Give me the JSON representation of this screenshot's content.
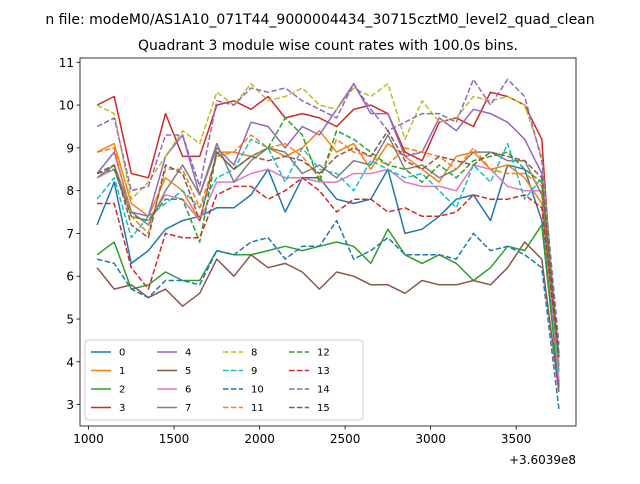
{
  "suptitle": "n file: modeM0/AS1A10_071T44_9000004434_30715cztM0_level2_quad_clean",
  "chart_data": {
    "type": "line",
    "title": "Quadrant 3 module wise count rates with 100.0s bins.",
    "xlabel": "",
    "ylabel": "",
    "x_offset_label": "+3.6039e8",
    "xlim": [
      950,
      3850
    ],
    "ylim": [
      2.5,
      11.1
    ],
    "xticks": [
      1000,
      1500,
      2000,
      2500,
      3000,
      3500
    ],
    "xtick_labels": [
      "1000",
      "1500",
      "2000",
      "2500",
      "3000",
      "3500"
    ],
    "yticks": [
      3,
      4,
      5,
      6,
      7,
      8,
      9,
      10,
      11
    ],
    "ytick_labels": [
      "3",
      "4",
      "5",
      "6",
      "7",
      "8",
      "9",
      "10",
      "11"
    ],
    "grid": false,
    "legend_position": "lower-left",
    "x": [
      1050,
      1150,
      1250,
      1350,
      1450,
      1550,
      1650,
      1750,
      1850,
      1950,
      2050,
      2150,
      2250,
      2350,
      2450,
      2550,
      2650,
      2750,
      2850,
      2950,
      3050,
      3150,
      3250,
      3350,
      3450,
      3550,
      3650,
      3750
    ],
    "series": [
      {
        "name": "0",
        "color": "#1f77b4",
        "dash": "solid",
        "values": [
          7.2,
          8.2,
          6.3,
          6.6,
          7.1,
          7.3,
          7.4,
          7.6,
          7.6,
          7.9,
          8.5,
          7.5,
          8.3,
          8.3,
          7.8,
          7.7,
          7.8,
          8.5,
          7.0,
          7.1,
          7.4,
          7.8,
          7.9,
          7.3,
          8.6,
          8.5,
          7.3,
          3.5
        ]
      },
      {
        "name": "1",
        "color": "#ff7f0e",
        "dash": "solid",
        "values": [
          8.9,
          9.1,
          7.7,
          7.4,
          8.3,
          8.0,
          7.3,
          8.9,
          8.9,
          8.8,
          9.0,
          8.8,
          9.0,
          9.4,
          8.9,
          9.1,
          8.5,
          9.1,
          8.8,
          8.5,
          8.2,
          8.8,
          8.9,
          8.5,
          8.6,
          8.3,
          7.7,
          3.8
        ]
      },
      {
        "name": "2",
        "color": "#2ca02c",
        "dash": "solid",
        "values": [
          6.5,
          6.8,
          5.7,
          5.8,
          6.1,
          5.9,
          5.9,
          6.6,
          6.5,
          6.5,
          6.6,
          6.7,
          6.6,
          6.7,
          6.8,
          6.7,
          6.3,
          7.1,
          6.5,
          6.3,
          6.5,
          6.3,
          5.9,
          6.2,
          6.7,
          6.6,
          7.2,
          3.4
        ]
      },
      {
        "name": "3",
        "color": "#d62728",
        "dash": "solid",
        "values": [
          10.0,
          10.2,
          8.4,
          8.3,
          9.8,
          8.8,
          8.8,
          10.0,
          10.1,
          9.9,
          10.2,
          9.7,
          9.8,
          9.7,
          9.5,
          9.9,
          10.0,
          9.8,
          8.9,
          8.7,
          9.6,
          9.7,
          9.5,
          10.3,
          10.2,
          10.0,
          9.2,
          3.4
        ]
      },
      {
        "name": "4",
        "color": "#9467bd",
        "dash": "solid",
        "values": [
          8.4,
          8.9,
          7.5,
          7.4,
          8.8,
          9.3,
          7.9,
          9.0,
          8.6,
          9.6,
          9.5,
          9.0,
          9.5,
          9.3,
          9.9,
          10.5,
          9.8,
          9.8,
          8.8,
          8.9,
          9.7,
          9.4,
          9.9,
          9.8,
          9.6,
          9.2,
          8.4,
          3.4
        ]
      },
      {
        "name": "5",
        "color": "#8c564b",
        "dash": "solid",
        "values": [
          6.2,
          5.7,
          5.8,
          5.5,
          5.7,
          5.3,
          5.6,
          6.4,
          6.0,
          6.5,
          6.2,
          6.3,
          6.1,
          5.7,
          6.1,
          6.0,
          5.8,
          5.8,
          5.6,
          5.9,
          5.8,
          5.8,
          5.9,
          5.8,
          6.2,
          6.8,
          6.4,
          3.3
        ]
      },
      {
        "name": "6",
        "color": "#e377c2",
        "dash": "solid",
        "values": [
          8.3,
          8.5,
          7.4,
          7.3,
          7.9,
          7.8,
          7.3,
          8.2,
          8.2,
          8.4,
          8.5,
          8.3,
          8.3,
          8.2,
          8.2,
          8.4,
          8.4,
          8.5,
          8.2,
          8.1,
          8.1,
          8.0,
          8.6,
          8.5,
          8.1,
          8.0,
          8.0,
          3.6
        ]
      },
      {
        "name": "7",
        "color": "#7f7f7f",
        "dash": "solid",
        "values": [
          8.3,
          8.6,
          7.5,
          7.2,
          8.0,
          8.6,
          7.9,
          9.1,
          8.2,
          8.7,
          9.0,
          8.9,
          8.4,
          8.6,
          8.3,
          8.7,
          8.6,
          9.3,
          8.5,
          8.6,
          8.3,
          8.5,
          8.9,
          8.9,
          8.7,
          8.7,
          7.9,
          3.9
        ]
      },
      {
        "name": "8",
        "color": "#bcbd22",
        "dash": "dashed",
        "values": [
          10.0,
          9.8,
          7.8,
          8.2,
          8.8,
          9.4,
          9.1,
          10.3,
          10.0,
          10.5,
          10.1,
          10.2,
          10.4,
          10.0,
          9.9,
          10.4,
          10.2,
          10.5,
          9.2,
          10.1,
          9.6,
          9.7,
          10.2,
          10.1,
          10.2,
          10.0,
          8.8,
          4.0
        ]
      },
      {
        "name": "9",
        "color": "#17becf",
        "dash": "dashed",
        "values": [
          7.8,
          8.3,
          6.9,
          7.4,
          7.7,
          8.0,
          7.6,
          8.3,
          8.5,
          9.2,
          9.0,
          8.2,
          9.0,
          8.5,
          8.4,
          8.0,
          8.7,
          8.5,
          8.3,
          8.4,
          8.0,
          7.6,
          8.6,
          8.2,
          9.1,
          7.8,
          8.3,
          3.7
        ]
      },
      {
        "name": "10",
        "color": "#1f77b4",
        "dash": "dashed",
        "values": [
          6.4,
          6.3,
          5.7,
          5.5,
          5.9,
          5.9,
          5.8,
          6.6,
          6.5,
          6.8,
          6.9,
          6.4,
          6.7,
          6.7,
          7.3,
          6.4,
          6.6,
          6.9,
          6.5,
          6.5,
          6.5,
          6.4,
          7.0,
          6.6,
          6.7,
          6.5,
          6.2,
          2.9
        ]
      },
      {
        "name": "11",
        "color": "#ff7f0e",
        "dash": "dashed",
        "values": [
          8.9,
          9.0,
          7.4,
          7.0,
          8.5,
          8.5,
          7.6,
          8.8,
          8.9,
          9.3,
          9.0,
          9.1,
          8.8,
          8.3,
          9.2,
          8.9,
          8.8,
          8.6,
          9.0,
          8.9,
          8.8,
          8.5,
          9.0,
          8.5,
          8.4,
          8.4,
          8.1,
          4.4
        ]
      },
      {
        "name": "12",
        "color": "#2ca02c",
        "dash": "dashed",
        "values": [
          8.4,
          8.5,
          7.4,
          7.3,
          7.8,
          7.8,
          6.8,
          8.9,
          8.5,
          8.8,
          9.0,
          9.7,
          9.3,
          8.2,
          9.4,
          9.2,
          8.9,
          8.6,
          8.5,
          8.2,
          8.6,
          8.3,
          8.7,
          8.8,
          8.9,
          8.5,
          8.2,
          4.1
        ]
      },
      {
        "name": "13",
        "color": "#d62728",
        "dash": "dashed",
        "values": [
          7.7,
          7.7,
          6.2,
          5.7,
          7.0,
          6.9,
          6.9,
          7.9,
          8.1,
          8.1,
          7.8,
          8.0,
          8.3,
          8.0,
          7.5,
          7.8,
          7.8,
          7.5,
          7.6,
          7.4,
          7.4,
          7.5,
          7.9,
          7.8,
          7.8,
          7.9,
          7.6,
          4.1
        ]
      },
      {
        "name": "14",
        "color": "#9467bd",
        "dash": "dashed",
        "values": [
          9.5,
          9.7,
          8.0,
          8.1,
          9.3,
          9.3,
          8.1,
          10.1,
          10.0,
          10.4,
          10.3,
          10.4,
          10.1,
          9.9,
          9.7,
          10.5,
          9.9,
          9.4,
          9.6,
          9.8,
          9.8,
          9.6,
          10.6,
          10.0,
          10.6,
          10.2,
          8.7,
          4.4
        ]
      },
      {
        "name": "15",
        "color": "#8c564b",
        "dash": "dashed",
        "values": [
          8.4,
          8.6,
          7.2,
          6.9,
          8.6,
          8.4,
          7.3,
          8.9,
          8.5,
          8.8,
          8.7,
          8.8,
          8.7,
          8.4,
          8.8,
          9.0,
          8.8,
          9.4,
          8.7,
          8.5,
          8.8,
          8.7,
          8.6,
          8.9,
          8.8,
          8.7,
          8.3,
          4.2
        ]
      }
    ]
  }
}
